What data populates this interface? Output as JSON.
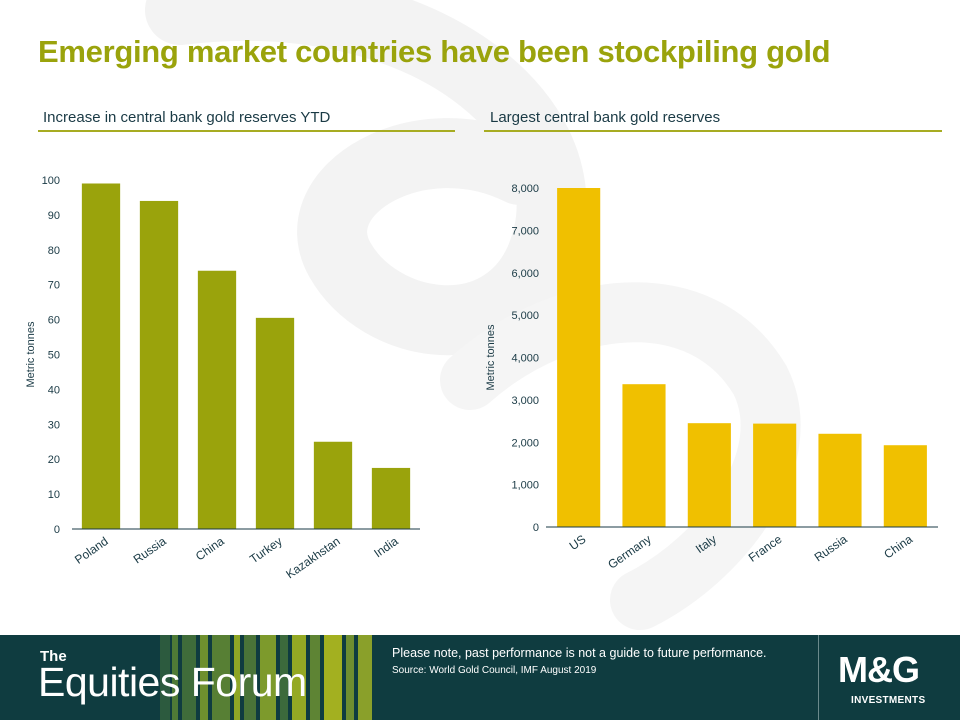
{
  "title": "Emerging market countries have been stockpiling gold",
  "footer": {
    "brand_prefix": "The",
    "brand_name": "Equities Forum",
    "disclaimer": "Please note, past performance  is not a guide to future performance.",
    "source": "Source: World Gold Council, IMF  August 2019",
    "logo_main": "M&G",
    "logo_sub": "INVESTMENTS"
  },
  "colors": {
    "title": "#9aa30c",
    "left_bars": "#9aa30c",
    "right_bars": "#f0c000",
    "footer_bg": "#0f3c40"
  },
  "chart_data": [
    {
      "type": "bar",
      "title": "Increase  in central bank gold reserves YTD",
      "ylabel": "Metric tonnes",
      "xlabel": "",
      "categories": [
        "Poland",
        "Russia",
        "China",
        "Turkey",
        "Kazakhstan",
        "India"
      ],
      "values": [
        99,
        94,
        74,
        60.5,
        25,
        17.5
      ],
      "ylim": [
        0,
        100
      ],
      "yticks": [
        0,
        10,
        20,
        30,
        40,
        50,
        60,
        70,
        80,
        90,
        100
      ],
      "ytick_labels": [
        "0",
        "10",
        "20",
        "30",
        "40",
        "50",
        "60",
        "70",
        "80",
        "90",
        "100"
      ],
      "grid": false,
      "legend": "none"
    },
    {
      "type": "bar",
      "title": "Largest central bank gold reserves",
      "ylabel": "Metric tonnes",
      "xlabel": "",
      "categories": [
        "US",
        "Germany",
        "Italy",
        "France",
        "Russia",
        "China"
      ],
      "values": [
        8000,
        3370,
        2450,
        2440,
        2200,
        1930
      ],
      "ylim": [
        0,
        8000
      ],
      "yticks": [
        0,
        1000,
        2000,
        3000,
        4000,
        5000,
        6000,
        7000,
        8000
      ],
      "ytick_labels": [
        "0",
        "1,000",
        "2,000",
        "3,000",
        "4,000",
        "5,000",
        "6,000",
        "7,000",
        "8,000"
      ],
      "grid": false,
      "legend": "none"
    }
  ]
}
